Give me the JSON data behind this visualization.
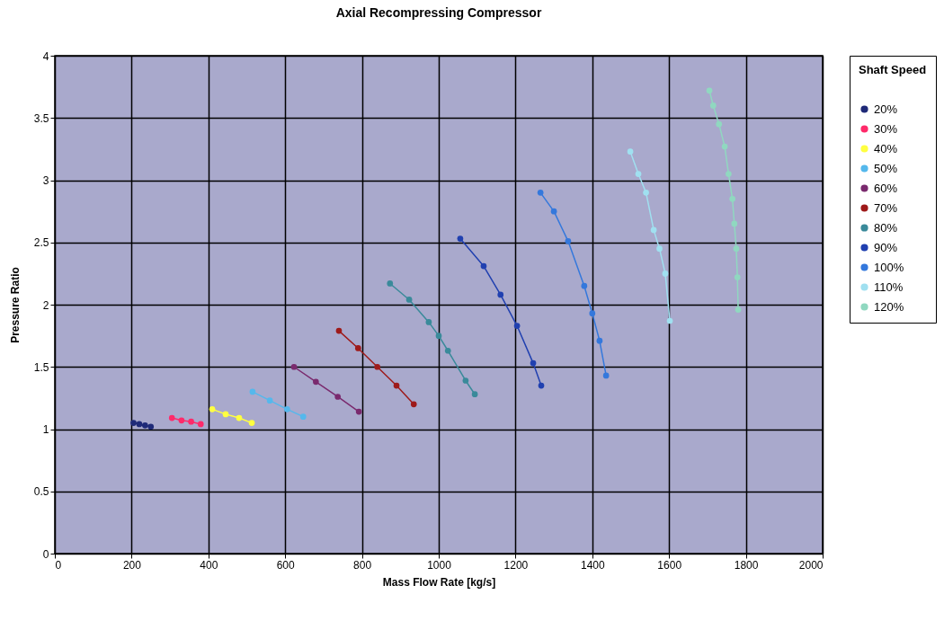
{
  "chart_data": {
    "type": "line",
    "title": "Axial Recompressing Compressor",
    "xlabel": "Mass Flow Rate [kg/s]",
    "ylabel": "Pressure Ratio",
    "legend_title": "Shaft Speed",
    "xlim": [
      0,
      2000
    ],
    "xticks": [
      0,
      200,
      400,
      600,
      800,
      1000,
      1200,
      1400,
      1600,
      1800,
      2000
    ],
    "ylim": [
      0,
      4
    ],
    "yticks": [
      0,
      0.5,
      1,
      1.5,
      2,
      2.5,
      3,
      3.5,
      4
    ],
    "grid": true,
    "legend": "right",
    "marker": "circle",
    "series": [
      {
        "name": "20%",
        "color": "#1f2a78",
        "x": [
          205,
          220,
          235,
          250
        ],
        "values": [
          1.05,
          1.04,
          1.03,
          1.02
        ]
      },
      {
        "name": "30%",
        "color": "#ff2a6a",
        "x": [
          305,
          330,
          355,
          380
        ],
        "values": [
          1.09,
          1.07,
          1.06,
          1.04
        ]
      },
      {
        "name": "40%",
        "color": "#ffff40",
        "x": [
          410,
          445,
          480,
          513
        ],
        "values": [
          1.16,
          1.12,
          1.09,
          1.05
        ]
      },
      {
        "name": "50%",
        "color": "#55b8ec",
        "x": [
          515,
          560,
          605,
          647
        ],
        "values": [
          1.3,
          1.23,
          1.16,
          1.1
        ]
      },
      {
        "name": "60%",
        "color": "#7a2a6e",
        "x": [
          623,
          680,
          737,
          792
        ],
        "values": [
          1.5,
          1.38,
          1.26,
          1.14
        ]
      },
      {
        "name": "70%",
        "color": "#9e1a1a",
        "x": [
          740,
          790,
          840,
          890,
          935
        ],
        "values": [
          1.79,
          1.65,
          1.5,
          1.35,
          1.2
        ]
      },
      {
        "name": "80%",
        "color": "#3a8a9a",
        "x": [
          873,
          923,
          974,
          1000,
          1024,
          1070,
          1094
        ],
        "values": [
          2.17,
          2.04,
          1.86,
          1.75,
          1.63,
          1.39,
          1.28
        ]
      },
      {
        "name": "90%",
        "color": "#2040b0",
        "x": [
          1056,
          1117,
          1161,
          1204,
          1246,
          1267
        ],
        "values": [
          2.53,
          2.31,
          2.08,
          1.83,
          1.53,
          1.35
        ]
      },
      {
        "name": "100%",
        "color": "#3478dc",
        "x": [
          1265,
          1300,
          1337,
          1379,
          1400,
          1419,
          1436
        ],
        "values": [
          2.9,
          2.75,
          2.51,
          2.15,
          1.93,
          1.71,
          1.43
        ]
      },
      {
        "name": "110%",
        "color": "#a0e0f0",
        "x": [
          1499,
          1520,
          1540,
          1560,
          1575,
          1590,
          1602
        ],
        "values": [
          3.23,
          3.05,
          2.9,
          2.6,
          2.45,
          2.25,
          1.87
        ]
      },
      {
        "name": "120%",
        "color": "#90d8c0",
        "x": [
          1705,
          1715,
          1730,
          1745,
          1755,
          1765,
          1770,
          1775,
          1778,
          1780
        ],
        "values": [
          3.72,
          3.6,
          3.45,
          3.27,
          3.05,
          2.85,
          2.65,
          2.45,
          2.22,
          1.96
        ]
      }
    ]
  }
}
